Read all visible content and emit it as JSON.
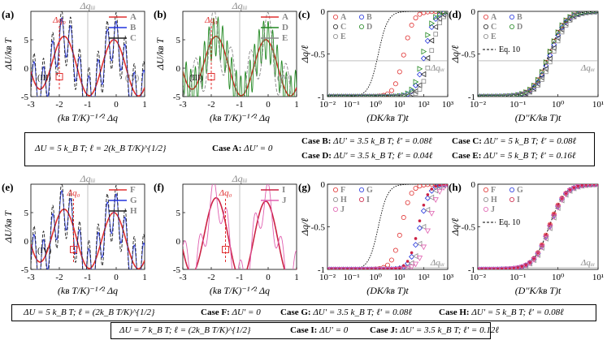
{
  "chart_data": [
    {
      "panel": "(a)",
      "type": "line",
      "xlabel": "(k_B T/K)^{-1/2} Δq",
      "ylabel": "ΔU/k_B T",
      "xlim": [
        -3,
        1
      ],
      "ylim": [
        -5,
        10
      ],
      "xticks": [
        "-3",
        "-2",
        "-1",
        "0",
        "1"
      ],
      "yticks": [
        "-5",
        "0",
        "5"
      ],
      "top_label": "Δq_III",
      "marker_label": "Δq_0",
      "marker_x": -2.0,
      "region_labels": [
        "(III)",
        "(IV)"
      ],
      "series": [
        {
          "name": "A",
          "color": "#e03030",
          "U0": 5,
          "amp": 0,
          "freq": 0
        },
        {
          "name": "B",
          "color": "#2233dd",
          "U0": 5,
          "amp": 3.5,
          "freq": 12.5
        },
        {
          "name": "C",
          "color": "#222222",
          "U0": 5,
          "amp": 5,
          "freq": 12.5
        }
      ]
    },
    {
      "panel": "(b)",
      "type": "line",
      "xlabel": "(k_B T/K)^{-1/2} Δq",
      "ylabel": "ΔU/k_B T",
      "xlim": [
        -3,
        1
      ],
      "ylim": [
        -5,
        10
      ],
      "xticks": [
        "-3",
        "-2",
        "-1",
        "0",
        "1"
      ],
      "yticks": [
        "-5",
        "0",
        "5"
      ],
      "top_label": "Δq_III",
      "marker_label": "Δq_0",
      "marker_x": -2.0,
      "region_labels": [
        "(III)",
        "(IV)"
      ],
      "series": [
        {
          "name": "A",
          "color": "#e03030",
          "U0": 5,
          "amp": 0,
          "freq": 0
        },
        {
          "name": "D",
          "color": "#228822",
          "U0": 5,
          "amp": 3.5,
          "freq": 25
        },
        {
          "name": "E",
          "color": "#888888",
          "U0": 5,
          "amp": 5,
          "freq": 6.25
        }
      ]
    },
    {
      "panel": "(c)",
      "type": "line",
      "xlabel": "(DK/k_B T)t",
      "ylabel": "Δq/ℓ",
      "xscale": "log",
      "xlim": [
        0.01,
        1000
      ],
      "ylim": [
        -1,
        0
      ],
      "xticks": [
        "10^{-2}",
        "10^{-1}",
        "10^{0}",
        "10^{1}",
        "10^{2}",
        "10^{3}"
      ],
      "yticks": [
        "0",
        "-0.5",
        "-1"
      ],
      "hline_label": "Δq_III",
      "hline_y": -0.58,
      "series": [
        {
          "name": "reference",
          "style": "dotted",
          "color": "#000000",
          "t_half": 1.3
        },
        {
          "name": "A",
          "marker": "circle",
          "color": "#e03030",
          "t_half": 15
        },
        {
          "name": "B",
          "marker": "diamond",
          "color": "#2233dd",
          "t_half": 110
        },
        {
          "name": "C",
          "marker": "triangle-left",
          "color": "#222222",
          "t_half": 160
        },
        {
          "name": "D",
          "marker": "triangle-right",
          "color": "#228822",
          "t_half": 95
        },
        {
          "name": "E",
          "marker": "square",
          "color": "#888888",
          "t_half": 200
        }
      ]
    },
    {
      "panel": "(d)",
      "type": "line",
      "xlabel": "(D''K/k_B T)t",
      "ylabel": "Δq/ℓ",
      "xscale": "log",
      "xlim": [
        0.01,
        10
      ],
      "ylim": [
        -1,
        0
      ],
      "xticks": [
        "10^{-2}",
        "10^{-1}",
        "10^{0}",
        "10^{1}"
      ],
      "yticks": [
        "0",
        "-0.5",
        "-1"
      ],
      "hline_label": "Δq_III",
      "hline_y": -0.58,
      "legend_extra": "Eq. 10",
      "series": [
        {
          "name": "Eq. 10",
          "style": "dashed",
          "color": "#000000",
          "t_half": 0.6
        },
        {
          "name": "A",
          "marker": "circle",
          "color": "#e03030",
          "t_half": 0.6
        },
        {
          "name": "B",
          "marker": "diamond",
          "color": "#2233dd",
          "t_half": 0.65
        },
        {
          "name": "C",
          "marker": "triangle-left",
          "color": "#222222",
          "t_half": 0.7
        },
        {
          "name": "D",
          "marker": "triangle-right",
          "color": "#228822",
          "t_half": 0.6
        },
        {
          "name": "E",
          "marker": "square",
          "color": "#888888",
          "t_half": 0.75
        }
      ]
    },
    {
      "panel": "(e)",
      "type": "line",
      "xlabel": "(k_B T/K)^{-1/2} Δq",
      "ylabel": "ΔU/k_B T",
      "xlim": [
        -3,
        1
      ],
      "ylim": [
        -5,
        10
      ],
      "xticks": [
        "-3",
        "-2",
        "-1",
        "0",
        "1"
      ],
      "yticks": [
        "-5",
        "0",
        "5"
      ],
      "top_label": "Δq_III",
      "marker_label": "Δq_0",
      "marker_x": -1.5,
      "region_labels": [
        "(IV)"
      ],
      "series": [
        {
          "name": "F",
          "color": "#e03030",
          "U0": 5,
          "amp": 0,
          "freq": 0
        },
        {
          "name": "G",
          "color": "#2233dd",
          "U0": 5,
          "amp": 3.5,
          "freq": 12.5
        },
        {
          "name": "H",
          "color": "#222222",
          "U0": 5,
          "amp": 5,
          "freq": 12.5
        }
      ]
    },
    {
      "panel": "(f)",
      "type": "line",
      "xlabel": "(k_B T/K)^{-1/2} Δq",
      "ylabel": "",
      "xlim": [
        -3,
        1
      ],
      "ylim": [
        -5,
        10
      ],
      "xticks": [
        "-3",
        "-2",
        "-1",
        "0",
        "1"
      ],
      "yticks": [
        "-5",
        "0",
        "5"
      ],
      "top_label": "Δq_III",
      "marker_label": "Δq_0",
      "marker_x": -1.5,
      "series": [
        {
          "name": "I",
          "color": "#cc2244",
          "U0": 7,
          "amp": 0,
          "freq": 0
        },
        {
          "name": "J",
          "color": "#e060b0",
          "U0": 7,
          "amp": 3.5,
          "freq": 8.3
        }
      ]
    },
    {
      "panel": "(g)",
      "type": "line",
      "xlabel": "(DK/k_B T)t",
      "ylabel": "Δq/ℓ",
      "xscale": "log",
      "xlim": [
        0.01,
        1000
      ],
      "ylim": [
        -1,
        0
      ],
      "xticks": [
        "10^{-2}",
        "10^{-1}",
        "10^{0}",
        "10^{1}",
        "10^{2}",
        "10^{3}"
      ],
      "yticks": [
        "0",
        "-0.5",
        "-1"
      ],
      "hline_label": "Δq_III",
      "hline_y": -0.98,
      "series": [
        {
          "name": "reference",
          "style": "dotted",
          "color": "#000000",
          "t_half": 1.3
        },
        {
          "name": "F",
          "marker": "circle",
          "color": "#e03030",
          "t_half": 12
        },
        {
          "name": "G",
          "marker": "diamond",
          "color": "#2233dd",
          "t_half": 70
        },
        {
          "name": "H",
          "marker": "triangle-left",
          "color": "#888888",
          "t_half": 100
        },
        {
          "name": "I",
          "marker": "star",
          "color": "#cc2244",
          "t_half": 60
        },
        {
          "name": "J",
          "marker": "triangle-down",
          "color": "#e060b0",
          "t_half": 160
        }
      ]
    },
    {
      "panel": "(h)",
      "type": "line",
      "xlabel": "(D''K/k_B T)t",
      "ylabel": "Δq/ℓ",
      "xscale": "log",
      "xlim": [
        0.01,
        10
      ],
      "ylim": [
        -1,
        0
      ],
      "xticks": [
        "10^{-2}",
        "10^{-1}",
        "10^{0}",
        "10^{1}"
      ],
      "yticks": [
        "0",
        "-0.5",
        "-1"
      ],
      "hline_label": "Δq_III",
      "hline_y": -0.98,
      "legend_extra": "Eq. 10",
      "series": [
        {
          "name": "Eq. 10",
          "style": "dashed",
          "color": "#000000",
          "t_half": 0.6
        },
        {
          "name": "F",
          "marker": "circle",
          "color": "#e03030",
          "t_half": 0.6
        },
        {
          "name": "G",
          "marker": "diamond",
          "color": "#2233dd",
          "t_half": 0.62
        },
        {
          "name": "H",
          "marker": "triangle-left",
          "color": "#888888",
          "t_half": 0.65
        },
        {
          "name": "I",
          "marker": "star",
          "color": "#cc2244",
          "t_half": 0.6
        },
        {
          "name": "J",
          "marker": "triangle-down",
          "color": "#e060b0",
          "t_half": 0.64
        }
      ]
    }
  ],
  "captions": {
    "top": {
      "base": "ΔU = 5 k_B T;  ℓ = 2(k_B T/K)^{1/2}",
      "caseA": "Case A:",
      "caseA_val": "ΔU′ = 0",
      "caseB": "Case B:",
      "caseB_val": "ΔU′ = 3.5 k_B T; ℓ′ = 0.08ℓ",
      "caseC": "Case C:",
      "caseC_val": "ΔU′ = 5 k_B T; ℓ′ = 0.08ℓ",
      "caseD": "Case D:",
      "caseD_val": "ΔU′ = 3.5 k_B T; ℓ′ = 0.04ℓ",
      "caseE": "Case E:",
      "caseE_val": "ΔU′ = 5 k_B T; ℓ′ = 0.16ℓ"
    },
    "mid": {
      "base": "ΔU = 5 k_B T;  ℓ = (2k_B T/K)^{1/2}",
      "caseF": "Case F:",
      "caseF_val": "ΔU′ = 0",
      "caseG": "Case G:",
      "caseG_val": "ΔU′ = 3.5 k_B T; ℓ′ = 0.08ℓ",
      "caseH": "Case H:",
      "caseH_val": "ΔU′ = 5 k_B T; ℓ′ = 0.08ℓ"
    },
    "bottom": {
      "base": "ΔU = 7 k_B T;  ℓ = (2k_B T/K)^{1/2}",
      "caseI": "Case I:",
      "caseI_val": "ΔU′ = 0",
      "caseJ": "Case J:",
      "caseJ_val": "ΔU′ = 3.5 k_B T; ℓ′ = 0.12ℓ"
    }
  }
}
